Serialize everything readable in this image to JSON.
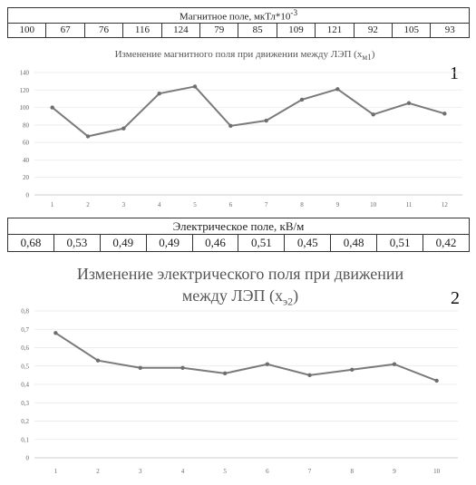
{
  "chart_data": [
    {
      "type": "line",
      "table_header": "Магнитное поле, мкТл*10",
      "table_header_sup": "-3",
      "title": "Изменение магнитного поля при движении между ЛЭП (x",
      "title_sub": "м1",
      "title_end": ")",
      "panel_number": "1",
      "categories": [
        "1",
        "2",
        "3",
        "4",
        "5",
        "6",
        "7",
        "8",
        "9",
        "10",
        "11",
        "12"
      ],
      "table_values": [
        "100",
        "67",
        "76",
        "116",
        "124",
        "79",
        "85",
        "109",
        "121",
        "92",
        "105",
        "93"
      ],
      "values": [
        100,
        67,
        76,
        116,
        124,
        79,
        85,
        109,
        121,
        92,
        105,
        93
      ],
      "y_ticks": [
        "0",
        "20",
        "40",
        "60",
        "80",
        "100",
        "120",
        "140"
      ],
      "ylim": [
        0,
        140
      ],
      "grid": true,
      "color": "#7a7a7a"
    },
    {
      "type": "line",
      "table_header": "Электрическое поле, кВ/м",
      "title_line1": "Изменение электрического поля при движении",
      "title_line2": "между ЛЭП (x",
      "title_sub": "э2",
      "title_end": ")",
      "panel_number": "2",
      "categories": [
        "1",
        "2",
        "3",
        "4",
        "5",
        "6",
        "7",
        "8",
        "9",
        "10"
      ],
      "table_values": [
        "0,68",
        "0,53",
        "0,49",
        "0,49",
        "0,46",
        "0,51",
        "0,45",
        "0,48",
        "0,51",
        "0,42"
      ],
      "values": [
        0.68,
        0.53,
        0.49,
        0.49,
        0.46,
        0.51,
        0.45,
        0.48,
        0.51,
        0.42
      ],
      "y_ticks": [
        "0",
        "0,1",
        "0,2",
        "0,3",
        "0,4",
        "0,5",
        "0,6",
        "0,7",
        "0,8"
      ],
      "ylim": [
        0,
        0.8
      ],
      "grid": true,
      "color": "#7a7a7a"
    }
  ]
}
